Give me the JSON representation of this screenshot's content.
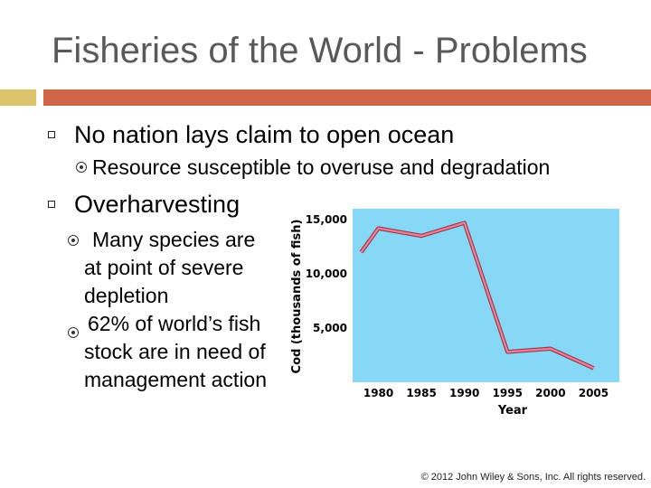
{
  "slide": {
    "title": "Fisheries of the World - Problems",
    "bullets": [
      {
        "text": "No nation lays claim to open ocean",
        "sub": [
          "Resource susceptible to overuse and degradation"
        ]
      },
      {
        "text": "Overharvesting",
        "sub": [
          "Many species are at point of severe depletion",
          "62% of world’s fish stock are in need of management action"
        ]
      }
    ],
    "copyright": "© 2012 John Wiley & Sons, Inc. All rights reserved."
  },
  "chart_data": {
    "type": "line",
    "ylabel": "Cod (thousands of fish)",
    "xlabel": "Year",
    "x_ticks": [
      1980,
      1985,
      1990,
      1995,
      2000,
      2005
    ],
    "y_ticks": [
      5000,
      10000,
      15000
    ],
    "y_tick_labels": [
      "5,000",
      "10,000",
      "15,000"
    ],
    "ylim": [
      0,
      16000
    ],
    "xlim": [
      1977,
      2008
    ],
    "x": [
      1978,
      1980,
      1985,
      1990,
      1995,
      2000,
      2005
    ],
    "values": [
      12000,
      14200,
      13500,
      14700,
      2800,
      3100,
      1300
    ],
    "grid": false,
    "colors": {
      "plot_bg": "#87d8f6",
      "line": "#e8829a",
      "line_outline": "#9c3a4c"
    }
  }
}
